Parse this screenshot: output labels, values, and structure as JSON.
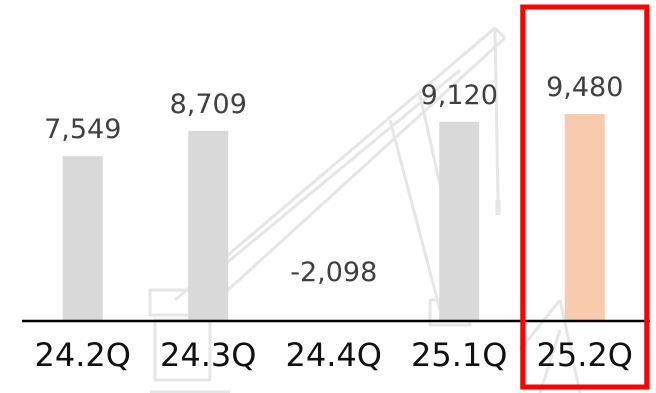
{
  "chart_data": {
    "type": "bar",
    "categories": [
      "24.2Q",
      "24.3Q",
      "24.4Q",
      "25.1Q",
      "25.2Q"
    ],
    "values": [
      7549,
      8709,
      -2098,
      9120,
      9480
    ],
    "value_labels": [
      "7,549",
      "8,709",
      "-2,098",
      "9,120",
      "9,480"
    ],
    "ylim": [
      0,
      10000
    ],
    "grid": false,
    "highlighted_category": "25.2Q",
    "colors": {
      "bar": "#d9d9d9",
      "highlight_bar": "#f8cbad",
      "highlight_box": "#ff0000",
      "axis": "#000000",
      "background_art": "#e6e6e6"
    }
  },
  "background": {
    "illustration_icon": "crane-illustration"
  }
}
